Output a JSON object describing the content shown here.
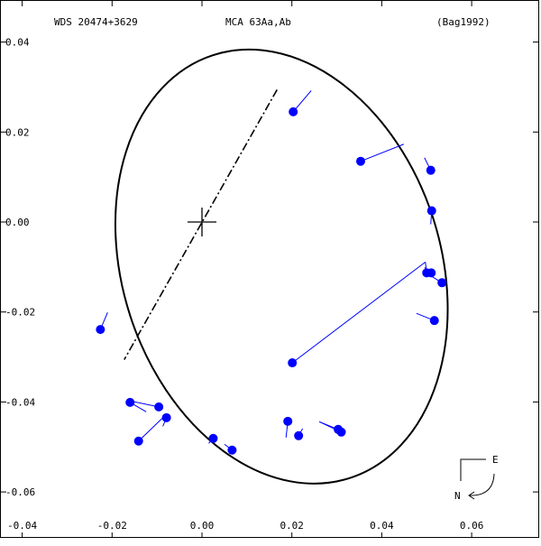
{
  "header": {
    "left": "WDS 20474+3629",
    "center": "MCA  63Aa,Ab",
    "right": "(Bag1992)"
  },
  "compass": {
    "east": "E",
    "north": "N"
  },
  "colors": {
    "orbit": "#000000",
    "point": "#0000ff",
    "residual": "#0000ff",
    "frame": "#000000"
  },
  "chart_data": {
    "type": "scatter",
    "title": "",
    "xlabel": "",
    "ylabel": "",
    "xlim": [
      -0.04,
      0.07
    ],
    "ylim": [
      -0.065,
      0.045
    ],
    "x_ticks": [
      {
        "v": -0.04,
        "label": "-0.04"
      },
      {
        "v": -0.02,
        "label": "-0.02"
      },
      {
        "v": 0.0,
        "label": "0.00"
      },
      {
        "v": 0.02,
        "label": "0.02"
      },
      {
        "v": 0.04,
        "label": "0.04"
      },
      {
        "v": 0.06,
        "label": "0.06"
      }
    ],
    "y_ticks": [
      {
        "v": 0.04,
        "label": "0.04"
      },
      {
        "v": 0.02,
        "label": "0.02"
      },
      {
        "v": 0.0,
        "label": "0.00"
      },
      {
        "v": -0.02,
        "label": "-0.02"
      },
      {
        "v": -0.04,
        "label": "-0.04"
      },
      {
        "v": -0.06,
        "label": "-0.06"
      }
    ],
    "primary": [
      0,
      0
    ],
    "orbit": {
      "center": [
        0.0177,
        -0.0099
      ],
      "semi_axes": [
        0.0354,
        0.0494
      ],
      "rotation_deg": -18,
      "node_line": [
        [
          0.0167,
          0.0294
        ],
        [
          -0.0173,
          -0.0306
        ]
      ]
    },
    "observations": [
      {
        "obs": [
          0.0203,
          0.0245
        ],
        "fit": [
          0.0243,
          0.0292
        ]
      },
      {
        "obs": [
          0.0353,
          0.0135
        ],
        "fit": [
          0.0449,
          0.0173
        ]
      },
      {
        "obs": [
          0.0509,
          0.0115
        ],
        "fit": [
          0.0495,
          0.0143
        ]
      },
      {
        "obs": [
          0.0511,
          0.0025
        ],
        "fit": [
          0.0509,
          -0.0005
        ]
      },
      {
        "obs": [
          0.05,
          -0.0113
        ],
        "fit": [
          0.0497,
          -0.0089
        ]
      },
      {
        "obs": [
          0.051,
          -0.0113
        ],
        "fit": [
          0.0495,
          -0.0101
        ]
      },
      {
        "obs": [
          0.0534,
          -0.0135
        ],
        "fit": [
          0.0492,
          -0.0109
        ]
      },
      {
        "obs": [
          0.0517,
          -0.0219
        ],
        "fit": [
          0.0477,
          -0.0203
        ]
      },
      {
        "obs": [
          0.0201,
          -0.0313
        ],
        "fit": [
          0.0497,
          -0.0089
        ]
      },
      {
        "obs": [
          0.031,
          -0.0467
        ],
        "fit": [
          0.0261,
          -0.0444
        ]
      },
      {
        "obs": [
          0.0303,
          -0.0461
        ],
        "fit": [
          0.0261,
          -0.0444
        ]
      },
      {
        "obs": [
          0.0215,
          -0.0475
        ],
        "fit": [
          0.0224,
          -0.0459
        ]
      },
      {
        "obs": [
          0.0191,
          -0.0443
        ],
        "fit": [
          0.0187,
          -0.0479
        ]
      },
      {
        "obs": [
          0.0067,
          -0.0507
        ],
        "fit": [
          0.005,
          -0.0494
        ]
      },
      {
        "obs": [
          0.0025,
          -0.0481
        ],
        "fit": [
          0.0015,
          -0.0492
        ]
      },
      {
        "obs": [
          -0.0079,
          -0.0435
        ],
        "fit": [
          -0.0087,
          -0.0454
        ]
      },
      {
        "obs": [
          -0.0096,
          -0.0411
        ],
        "fit": [
          -0.0154,
          -0.0399
        ]
      },
      {
        "obs": [
          -0.0141,
          -0.0487
        ],
        "fit": [
          -0.0086,
          -0.0434
        ]
      },
      {
        "obs": [
          -0.016,
          -0.0401
        ],
        "fit": [
          -0.0124,
          -0.0422
        ]
      },
      {
        "obs": [
          -0.0226,
          -0.0239
        ],
        "fit": [
          -0.021,
          -0.0201
        ]
      }
    ]
  }
}
